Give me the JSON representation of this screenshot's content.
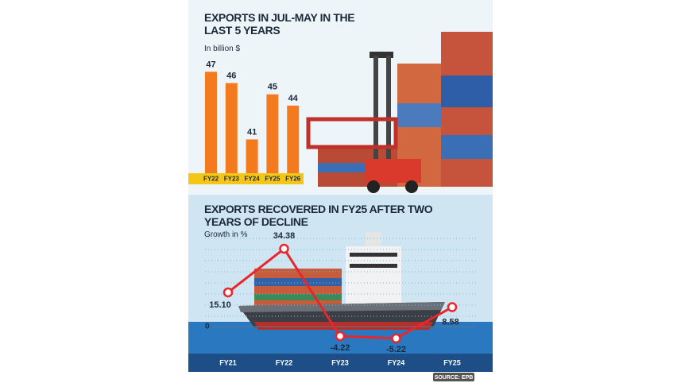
{
  "chart_data": [
    {
      "type": "bar",
      "title": "EXPORTS IN JUL-MAY IN THE LAST 5 YEARS",
      "subtitle": "In billion $",
      "categories": [
        "FY22",
        "FY23",
        "FY24",
        "FY25",
        "FY26"
      ],
      "values": [
        47,
        46,
        41,
        45,
        44
      ],
      "color": "#f47a20",
      "ylim": [
        38,
        49
      ]
    },
    {
      "type": "line",
      "title": "EXPORTS RECOVERED IN FY25 AFTER TWO YEARS OF DECLINE",
      "subtitle": "Growth in %",
      "categories": [
        "FY21",
        "FY22",
        "FY23",
        "FY24",
        "FY25"
      ],
      "values": [
        15.1,
        34.38,
        -4.22,
        -5.22,
        8.58
      ],
      "value_labels": [
        "15.10",
        "34.38",
        "-4.22",
        "-5.22",
        "8.58"
      ],
      "color": "#e8262b",
      "ylim": [
        -10,
        40
      ],
      "yticks": [
        0
      ],
      "source": "SOURCE: EPB"
    }
  ]
}
